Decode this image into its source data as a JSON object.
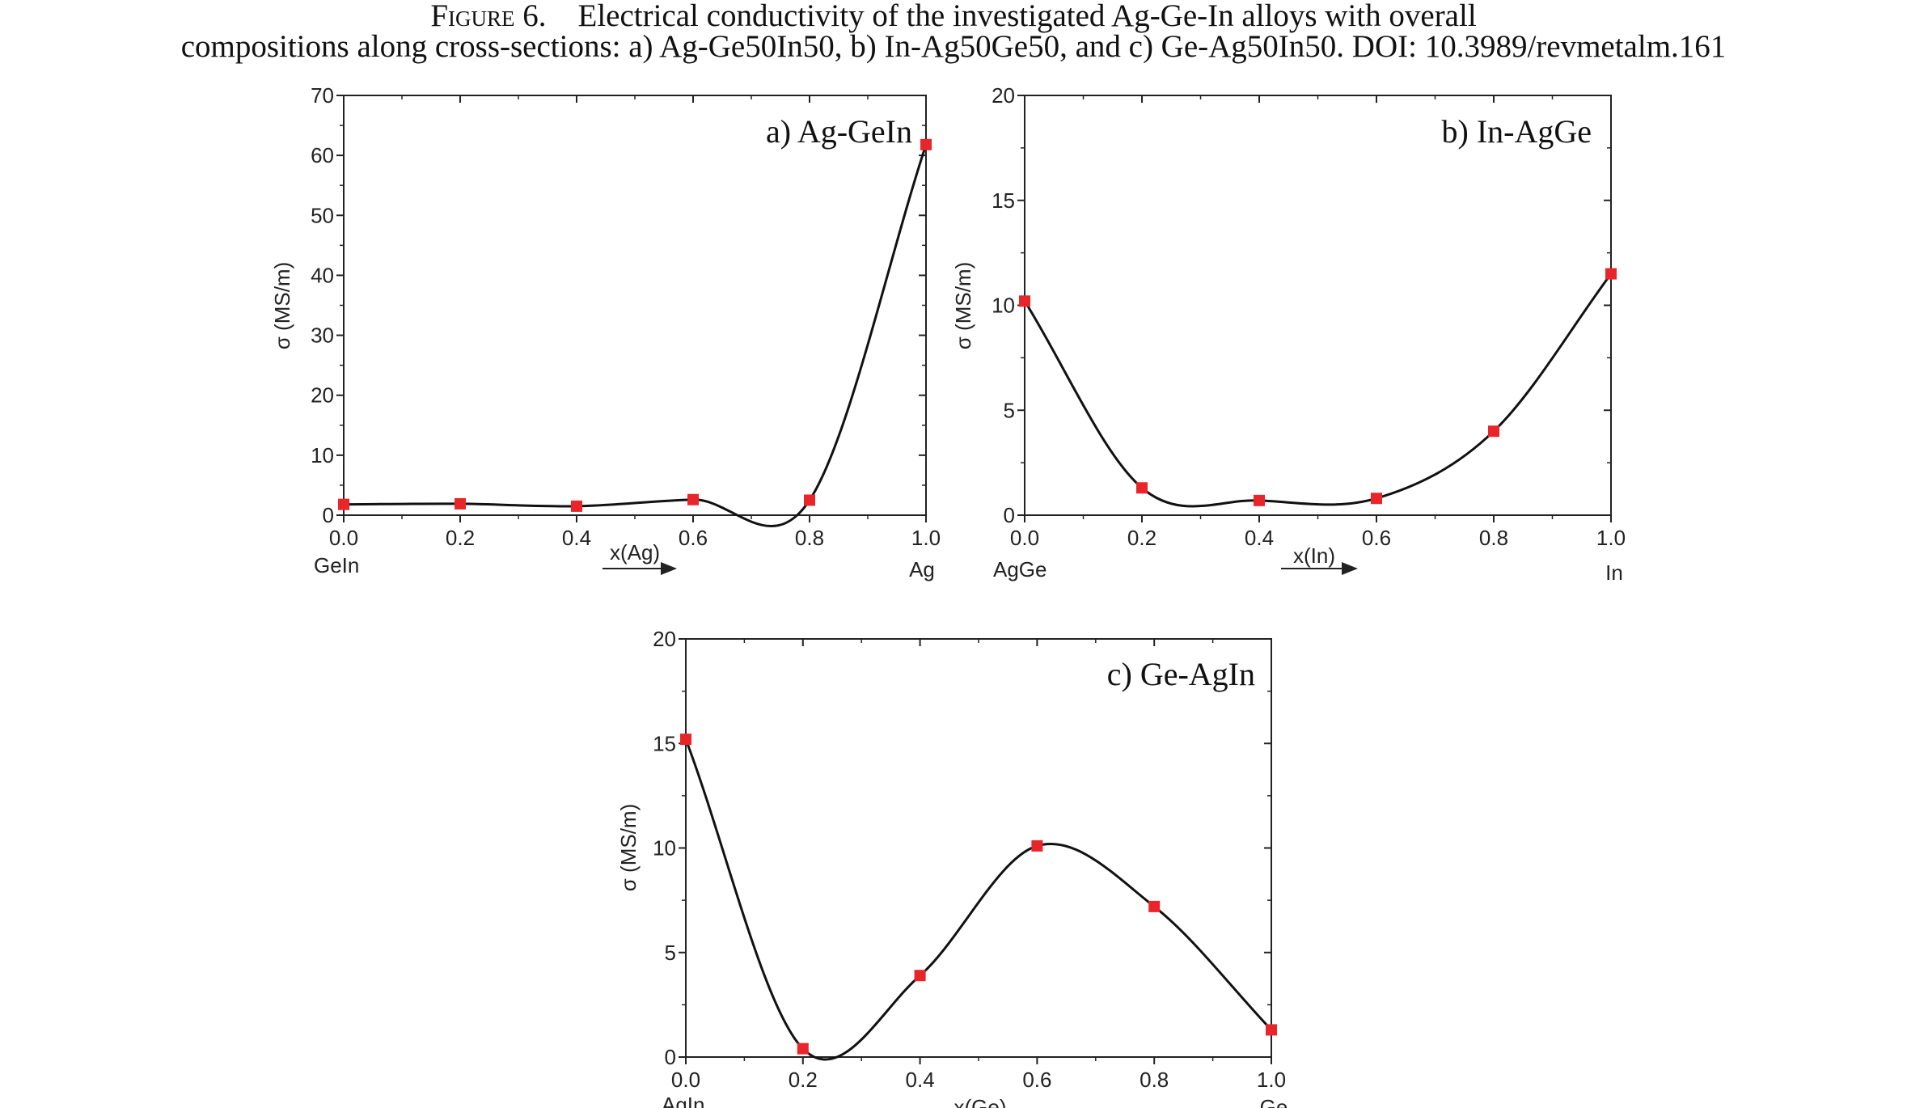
{
  "caption": {
    "figure_label": "Figure 6.",
    "line1_text": "Electrical conductivity of the investigated Ag-Ge-In alloys with overall",
    "line2_text": "compositions along cross-sections: a) Ag-Ge50In50, b) In-Ag50Ge50, and c) Ge-Ag50In50. DOI: 10.3989/revmetalm.161"
  },
  "colors": {
    "marker": "#e8262a",
    "curve": "#111111",
    "axis": "#222222"
  },
  "chart_data": [
    {
      "type": "line",
      "title": "a) Ag-GeIn",
      "xlabel": "x(Ag)",
      "ylabel": "σ (MS/m)",
      "x_left_label": "GeIn",
      "x_right_label": "Ag",
      "xlim": [
        0,
        1
      ],
      "ylim": [
        0,
        70
      ],
      "xticks": [
        "0.0",
        "0.2",
        "0.4",
        "0.6",
        "0.8",
        "1.0"
      ],
      "yticks": [
        "0",
        "10",
        "20",
        "30",
        "40",
        "50",
        "60",
        "70"
      ],
      "x": [
        0.0,
        0.2,
        0.4,
        0.6,
        0.8,
        1.0
      ],
      "y": [
        1.8,
        1.9,
        1.5,
        2.6,
        2.5,
        61.8
      ]
    },
    {
      "type": "line",
      "title": "b) In-AgGe",
      "xlabel": "x(In)",
      "ylabel": "σ (MS/m)",
      "x_left_label": "AgGe",
      "x_right_label": "In",
      "xlim": [
        0,
        1
      ],
      "ylim": [
        0,
        20
      ],
      "xticks": [
        "0.0",
        "0.2",
        "0.4",
        "0.6",
        "0.8",
        "1.0"
      ],
      "yticks": [
        "0",
        "5",
        "10",
        "15",
        "20"
      ],
      "x": [
        0.0,
        0.2,
        0.4,
        0.6,
        0.8,
        1.0
      ],
      "y": [
        10.2,
        1.3,
        0.7,
        0.8,
        4.0,
        11.5
      ]
    },
    {
      "type": "line",
      "title": "c) Ge-AgIn",
      "xlabel": "x(Ge)",
      "ylabel": "σ (MS/m)",
      "x_left_label": "AgIn",
      "x_right_label": "Ge",
      "xlim": [
        0,
        1
      ],
      "ylim": [
        0,
        20
      ],
      "xticks": [
        "0.0",
        "0.2",
        "0.4",
        "0.6",
        "0.8",
        "1.0"
      ],
      "yticks": [
        "0",
        "5",
        "10",
        "15",
        "20"
      ],
      "x": [
        0.0,
        0.2,
        0.4,
        0.6,
        0.8,
        1.0
      ],
      "y": [
        15.2,
        0.4,
        3.9,
        10.1,
        7.2,
        1.3
      ]
    }
  ]
}
